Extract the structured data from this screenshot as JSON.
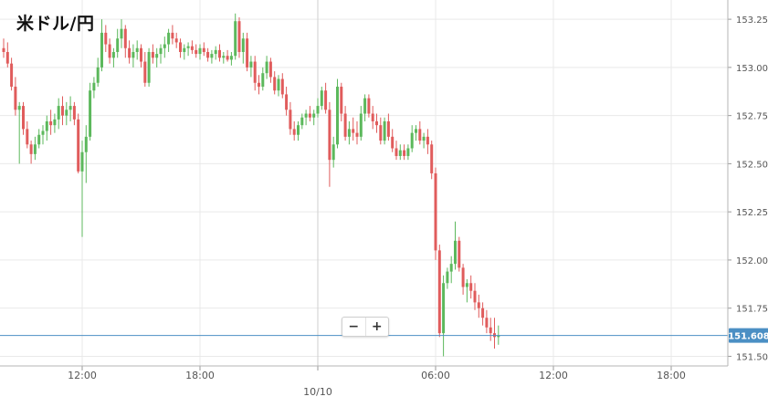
{
  "title": "米ドル/円",
  "zoom": {
    "out_label": "−",
    "in_label": "+"
  },
  "colors": {
    "up": "#5cb85c",
    "down": "#e05c5c",
    "current_line": "#4b8fc4",
    "grid": "#e9e9e9"
  },
  "chart_data": {
    "type": "candlestick",
    "title": "米ドル/円",
    "current_price": 151.608,
    "current_price_label": "151.608",
    "ylim": [
      151.45,
      153.35
    ],
    "y_ticks": [
      153.25,
      153.0,
      152.75,
      152.5,
      152.25,
      152.0,
      151.75,
      151.5
    ],
    "y_tick_labels": [
      "153.250",
      "153.000",
      "152.750",
      "152.500",
      "152.250",
      "152.000",
      "151.750",
      "151.500"
    ],
    "x_tick_labels": [
      {
        "label": "12:00",
        "index": 20
      },
      {
        "label": "18:00",
        "index": 50
      },
      {
        "label": "10/10",
        "index": 80
      },
      {
        "label": "06:00",
        "index": 110
      },
      {
        "label": "12:00",
        "index": 140
      },
      {
        "label": "18:00",
        "index": 170
      }
    ],
    "ohlc": [
      [
        153.1,
        153.15,
        153.05,
        153.08
      ],
      [
        153.08,
        153.13,
        153.0,
        153.02
      ],
      [
        153.02,
        153.05,
        152.88,
        152.9
      ],
      [
        152.9,
        152.95,
        152.75,
        152.78
      ],
      [
        152.78,
        152.82,
        152.5,
        152.8
      ],
      [
        152.8,
        152.82,
        152.65,
        152.68
      ],
      [
        152.68,
        152.72,
        152.58,
        152.6
      ],
      [
        152.6,
        152.62,
        152.5,
        152.55
      ],
      [
        152.55,
        152.64,
        152.52,
        152.6
      ],
      [
        152.6,
        152.68,
        152.58,
        152.65
      ],
      [
        152.65,
        152.7,
        152.6,
        152.67
      ],
      [
        152.67,
        152.75,
        152.62,
        152.72
      ],
      [
        152.72,
        152.78,
        152.65,
        152.7
      ],
      [
        152.7,
        152.76,
        152.66,
        152.73
      ],
      [
        152.73,
        152.84,
        152.68,
        152.8
      ],
      [
        152.8,
        152.85,
        152.7,
        152.75
      ],
      [
        152.75,
        152.82,
        152.7,
        152.78
      ],
      [
        152.78,
        152.85,
        152.72,
        152.8
      ],
      [
        152.8,
        152.82,
        152.7,
        152.73
      ],
      [
        152.73,
        152.76,
        152.45,
        152.46
      ],
      [
        152.46,
        152.62,
        152.12,
        152.56
      ],
      [
        152.56,
        152.7,
        152.4,
        152.64
      ],
      [
        152.64,
        152.92,
        152.62,
        152.88
      ],
      [
        152.88,
        152.95,
        152.84,
        152.92
      ],
      [
        152.92,
        153.05,
        152.9,
        153.0
      ],
      [
        153.0,
        153.25,
        152.98,
        153.18
      ],
      [
        153.18,
        153.22,
        153.08,
        153.12
      ],
      [
        153.12,
        153.15,
        153.02,
        153.05
      ],
      [
        153.05,
        153.1,
        153.0,
        153.08
      ],
      [
        153.08,
        153.2,
        153.05,
        153.15
      ],
      [
        153.15,
        153.25,
        153.1,
        153.2
      ],
      [
        153.2,
        153.22,
        153.05,
        153.1
      ],
      [
        153.1,
        153.14,
        153.02,
        153.05
      ],
      [
        153.05,
        153.12,
        153.0,
        153.08
      ],
      [
        153.08,
        153.14,
        153.04,
        153.1
      ],
      [
        153.1,
        153.12,
        153.0,
        153.03
      ],
      [
        153.03,
        153.08,
        152.9,
        152.92
      ],
      [
        152.92,
        153.1,
        152.9,
        153.08
      ],
      [
        153.08,
        153.12,
        153.02,
        153.05
      ],
      [
        153.05,
        153.1,
        153.0,
        153.07
      ],
      [
        153.07,
        153.12,
        153.02,
        153.1
      ],
      [
        153.1,
        153.16,
        153.05,
        153.12
      ],
      [
        153.12,
        153.2,
        153.08,
        153.18
      ],
      [
        153.18,
        153.22,
        153.12,
        153.15
      ],
      [
        153.15,
        153.18,
        153.1,
        153.13
      ],
      [
        153.13,
        153.15,
        153.05,
        153.08
      ],
      [
        153.08,
        153.12,
        153.04,
        153.1
      ],
      [
        153.1,
        153.13,
        153.06,
        153.11
      ],
      [
        153.11,
        153.14,
        153.07,
        153.09
      ],
      [
        153.09,
        153.12,
        153.05,
        153.07
      ],
      [
        153.07,
        153.12,
        153.04,
        153.1
      ],
      [
        153.1,
        153.13,
        153.06,
        153.08
      ],
      [
        153.08,
        153.1,
        153.03,
        153.05
      ],
      [
        153.05,
        153.09,
        153.02,
        153.07
      ],
      [
        153.07,
        153.11,
        153.04,
        153.09
      ],
      [
        153.09,
        153.12,
        153.03,
        153.05
      ],
      [
        153.05,
        153.08,
        153.02,
        153.06
      ],
      [
        153.06,
        153.09,
        153.03,
        153.04
      ],
      [
        153.04,
        153.08,
        153.01,
        153.06
      ],
      [
        153.06,
        153.28,
        153.04,
        153.24
      ],
      [
        153.24,
        153.26,
        153.05,
        153.08
      ],
      [
        153.08,
        153.18,
        153.02,
        153.15
      ],
      [
        153.15,
        153.18,
        152.98,
        153.0
      ],
      [
        153.0,
        153.06,
        152.95,
        153.03
      ],
      [
        153.03,
        153.06,
        152.88,
        152.92
      ],
      [
        152.92,
        152.96,
        152.86,
        152.9
      ],
      [
        152.9,
        153.0,
        152.88,
        152.97
      ],
      [
        152.97,
        153.06,
        152.94,
        153.03
      ],
      [
        153.03,
        153.05,
        152.92,
        152.95
      ],
      [
        152.95,
        152.98,
        152.86,
        152.88
      ],
      [
        152.88,
        152.96,
        152.85,
        152.94
      ],
      [
        152.94,
        152.97,
        152.84,
        152.86
      ],
      [
        152.86,
        152.9,
        152.75,
        152.78
      ],
      [
        152.78,
        152.82,
        152.65,
        152.68
      ],
      [
        152.68,
        152.72,
        152.62,
        152.65
      ],
      [
        152.65,
        152.72,
        152.62,
        152.7
      ],
      [
        152.7,
        152.76,
        152.68,
        152.74
      ],
      [
        152.74,
        152.78,
        152.7,
        152.76
      ],
      [
        152.76,
        152.8,
        152.72,
        152.74
      ],
      [
        152.74,
        152.78,
        152.7,
        152.76
      ],
      [
        152.76,
        152.84,
        152.74,
        152.8
      ],
      [
        152.8,
        152.9,
        152.78,
        152.88
      ],
      [
        152.88,
        152.92,
        152.76,
        152.78
      ],
      [
        152.78,
        152.82,
        152.38,
        152.52
      ],
      [
        152.52,
        152.64,
        152.48,
        152.6
      ],
      [
        152.6,
        152.94,
        152.58,
        152.9
      ],
      [
        152.9,
        152.92,
        152.72,
        152.76
      ],
      [
        152.76,
        152.8,
        152.62,
        152.64
      ],
      [
        152.64,
        152.72,
        152.6,
        152.68
      ],
      [
        152.68,
        152.74,
        152.62,
        152.66
      ],
      [
        152.66,
        152.72,
        152.6,
        152.64
      ],
      [
        152.64,
        152.8,
        152.62,
        152.76
      ],
      [
        152.76,
        152.86,
        152.72,
        152.84
      ],
      [
        152.84,
        152.86,
        152.74,
        152.76
      ],
      [
        152.76,
        152.8,
        152.68,
        152.72
      ],
      [
        152.72,
        152.76,
        152.66,
        152.7
      ],
      [
        152.7,
        152.74,
        152.6,
        152.62
      ],
      [
        152.62,
        152.74,
        152.6,
        152.72
      ],
      [
        152.72,
        152.76,
        152.62,
        152.64
      ],
      [
        152.64,
        152.68,
        152.56,
        152.58
      ],
      [
        152.58,
        152.62,
        152.52,
        152.54
      ],
      [
        152.54,
        152.6,
        152.52,
        152.57
      ],
      [
        152.57,
        152.6,
        152.52,
        152.54
      ],
      [
        152.54,
        152.6,
        152.52,
        152.58
      ],
      [
        152.58,
        152.7,
        152.56,
        152.66
      ],
      [
        152.66,
        152.7,
        152.62,
        152.68
      ],
      [
        152.68,
        152.72,
        152.6,
        152.62
      ],
      [
        152.62,
        152.66,
        152.58,
        152.64
      ],
      [
        152.64,
        152.68,
        152.55,
        152.6
      ],
      [
        152.6,
        152.62,
        152.42,
        152.45
      ],
      [
        152.45,
        152.48,
        152.0,
        152.05
      ],
      [
        152.05,
        152.08,
        151.6,
        151.62
      ],
      [
        151.62,
        151.92,
        151.5,
        151.88
      ],
      [
        151.88,
        151.96,
        151.85,
        151.94
      ],
      [
        151.94,
        152.02,
        151.88,
        151.98
      ],
      [
        151.98,
        152.2,
        151.95,
        152.1
      ],
      [
        152.1,
        152.12,
        151.94,
        151.96
      ],
      [
        151.96,
        151.98,
        151.82,
        151.86
      ],
      [
        151.86,
        151.9,
        151.78,
        151.88
      ],
      [
        151.88,
        151.92,
        151.8,
        151.84
      ],
      [
        151.84,
        151.88,
        151.74,
        151.78
      ],
      [
        151.78,
        151.82,
        151.7,
        151.75
      ],
      [
        151.75,
        151.78,
        151.66,
        151.7
      ],
      [
        151.7,
        151.74,
        151.62,
        151.65
      ],
      [
        151.65,
        151.7,
        151.58,
        151.62
      ],
      [
        151.62,
        151.7,
        151.54,
        151.6
      ],
      [
        151.6,
        151.66,
        151.56,
        151.608
      ]
    ],
    "grid": true
  }
}
